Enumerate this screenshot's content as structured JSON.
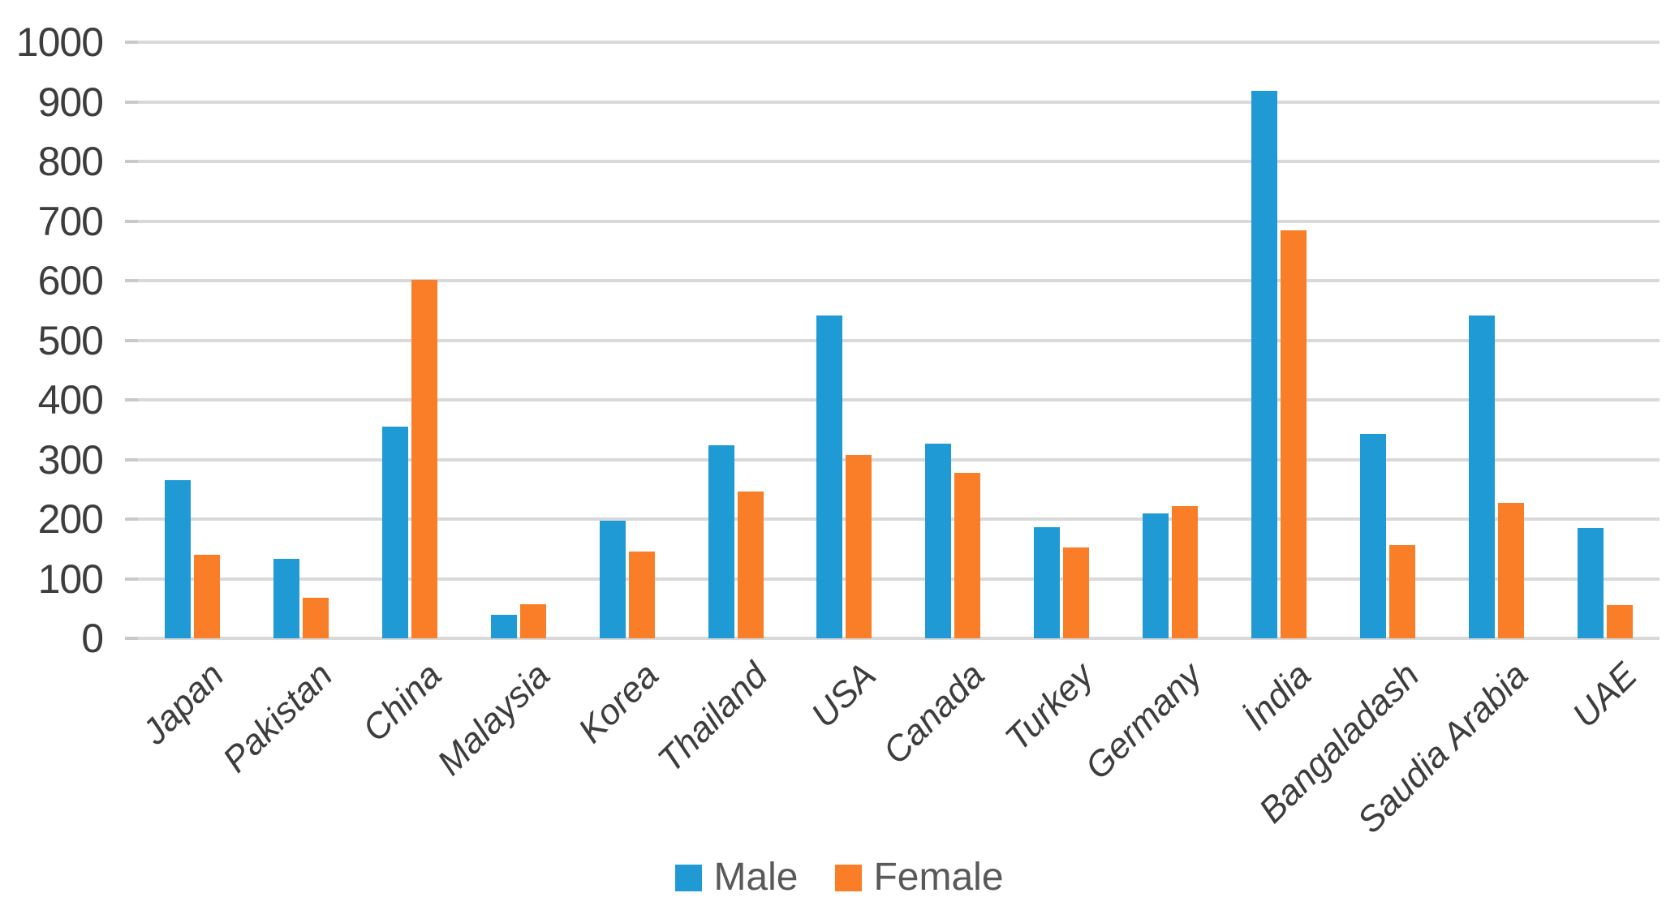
{
  "chart_data": {
    "type": "bar",
    "title": "",
    "xlabel": "",
    "ylabel": "",
    "categories": [
      "Japan",
      "Pakistan",
      "China",
      "Malaysia",
      "Korea",
      "Thailand",
      "USA",
      "Canada",
      "Turkey",
      "Germany",
      "İndia",
      "Bangaladash",
      "Saudia Arabia",
      "UAE"
    ],
    "series": [
      {
        "name": "Male",
        "color": "#209AD4",
        "values": [
          265,
          133,
          355,
          40,
          197,
          324,
          541,
          326,
          187,
          210,
          918,
          343,
          541,
          185
        ]
      },
      {
        "name": "Female",
        "color": "#F97E27",
        "values": [
          140,
          68,
          602,
          57,
          145,
          246,
          307,
          278,
          152,
          222,
          685,
          156,
          227,
          56
        ]
      }
    ],
    "ylim": [
      0,
      1000
    ],
    "yticks": [
      0,
      100,
      200,
      300,
      400,
      500,
      600,
      700,
      800,
      900,
      1000
    ],
    "grid": true,
    "legend_position": "bottom"
  },
  "style_colors": {
    "gridline": "#D9D9D9",
    "tick_stub": "#C9C9C9",
    "axis_text": "#3D3D3D",
    "category_text": "#3D3D3D",
    "legend_text": "#595959",
    "background": "#FFFFFF"
  }
}
